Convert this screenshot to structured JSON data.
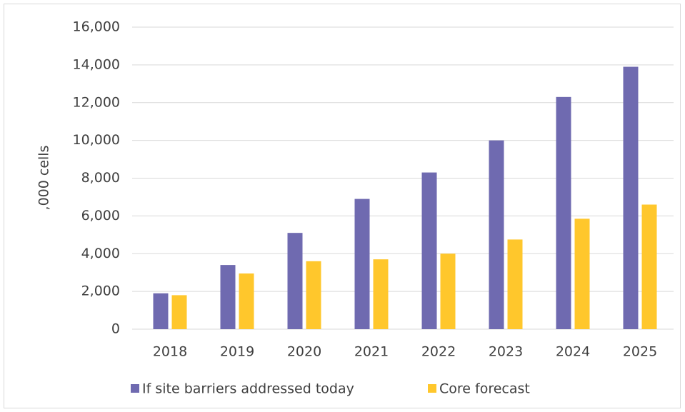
{
  "chart_data": {
    "type": "bar",
    "ylabel": ",000 cells",
    "categories": [
      "2018",
      "2019",
      "2020",
      "2021",
      "2022",
      "2023",
      "2024",
      "2025"
    ],
    "series": [
      {
        "name": "If site barriers addressed today",
        "color": "#6f6ab0",
        "values": [
          1900,
          3400,
          5100,
          6900,
          8300,
          10000,
          12300,
          13900
        ]
      },
      {
        "name": "Core forecast",
        "color": "#ffc72c",
        "values": [
          1800,
          2950,
          3600,
          3700,
          4000,
          4750,
          5850,
          6600
        ]
      }
    ],
    "ylim": [
      0,
      16000
    ],
    "yticks": [
      0,
      {
        "value": 2000,
        "label": "2,000"
      },
      {
        "value": 4000,
        "label": "4,000"
      },
      {
        "value": 6000,
        "label": "6,000"
      },
      {
        "value": 8000,
        "label": "8,000"
      },
      {
        "value": 10000,
        "label": "10,000"
      },
      {
        "value": 12000,
        "label": "12,000"
      },
      {
        "value": 14000,
        "label": "14,000"
      },
      {
        "value": 16000,
        "label": "16,000"
      }
    ],
    "grid": true,
    "legend": "bottom"
  }
}
